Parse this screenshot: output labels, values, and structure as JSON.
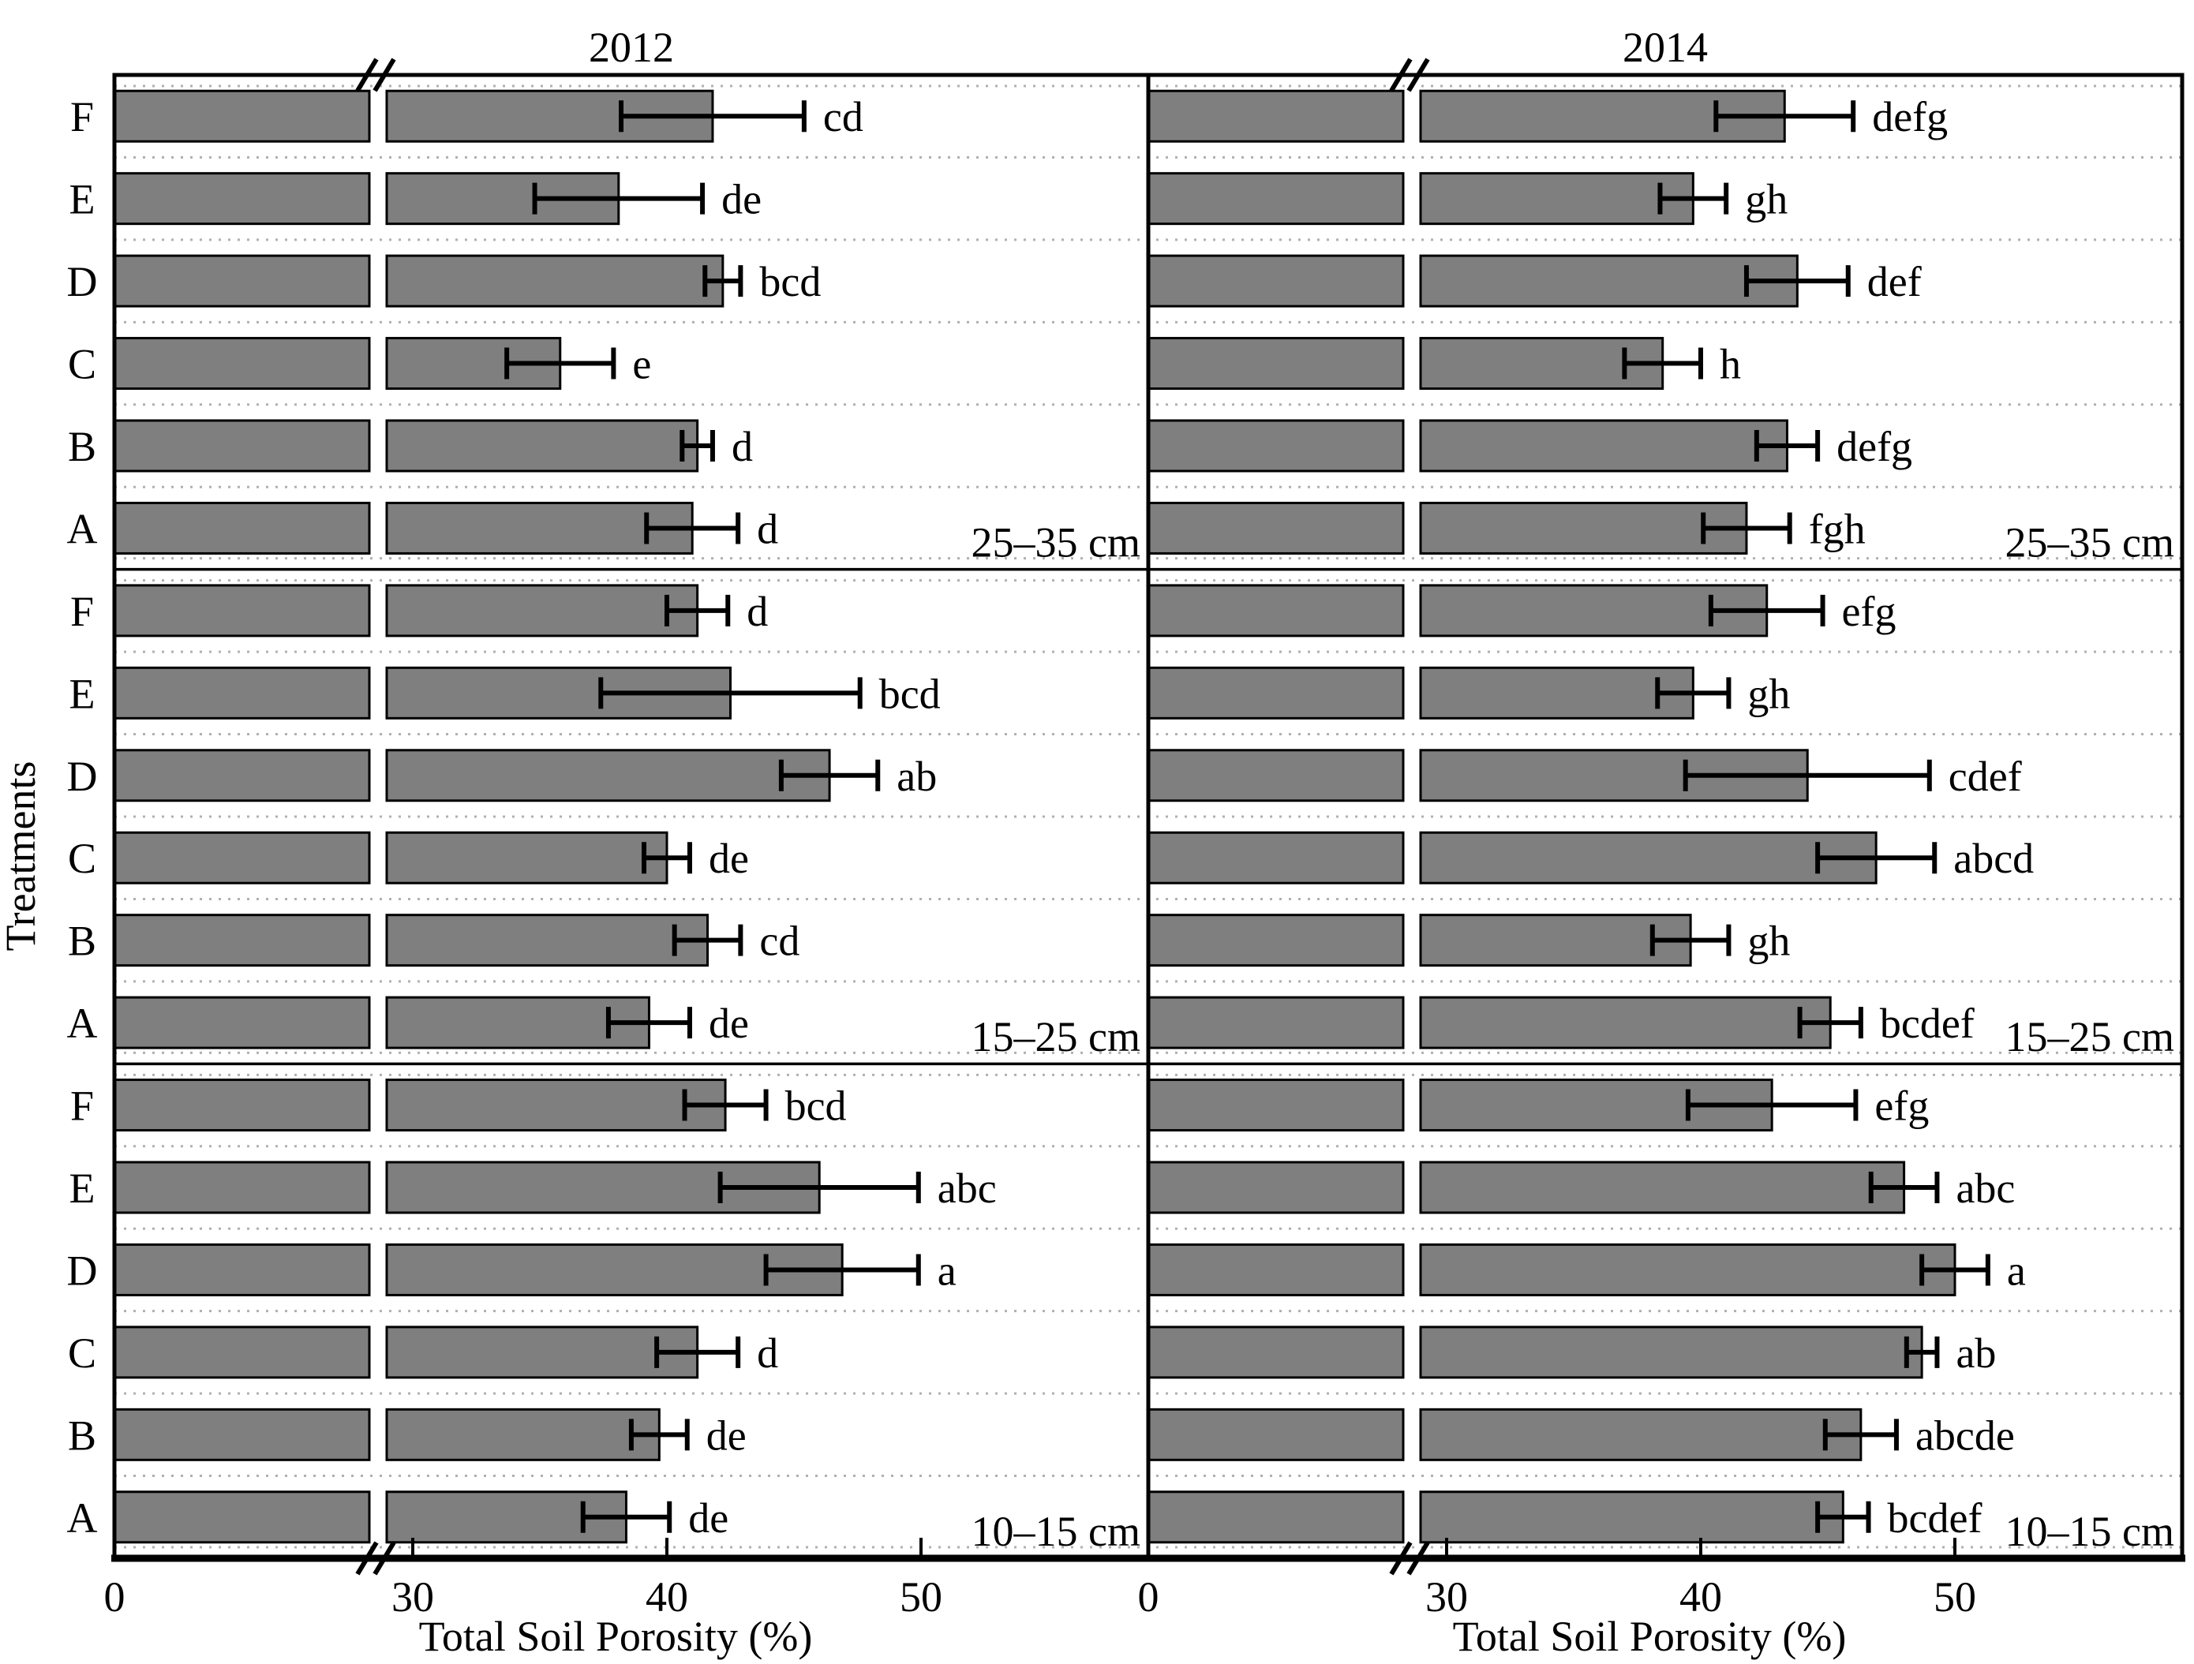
{
  "chart_data": {
    "type": "bar",
    "orientation": "horizontal",
    "bar_color": "#7f7f7f",
    "bar_edge_color": "#000000",
    "grid_color": "#b0b0b0",
    "ylabel": "Treatments",
    "treatments_top_to_bottom": [
      "F",
      "E",
      "D",
      "C",
      "B",
      "A"
    ],
    "depth_sections_top_to_bottom": [
      "25–35 cm",
      "15–25 cm",
      "10–15 cm"
    ],
    "x_axis": {
      "label": "Total Soil Porosity (%)",
      "ticks": [
        0,
        30,
        40,
        50
      ],
      "break_between": [
        0,
        30
      ],
      "max": 59
    },
    "panels": [
      {
        "title": "2012",
        "sections": [
          {
            "depth": "25–35 cm",
            "bars": [
              {
                "treatment": "F",
                "value": 41.8,
                "error": 3.6,
                "letter": "cd"
              },
              {
                "treatment": "E",
                "value": 38.1,
                "error": 3.3,
                "letter": "de"
              },
              {
                "treatment": "D",
                "value": 42.2,
                "error": 0.7,
                "letter": "bcd"
              },
              {
                "treatment": "C",
                "value": 35.8,
                "error": 2.1,
                "letter": "e"
              },
              {
                "treatment": "B",
                "value": 41.2,
                "error": 0.6,
                "letter": "d"
              },
              {
                "treatment": "A",
                "value": 41.0,
                "error": 1.8,
                "letter": "d"
              }
            ]
          },
          {
            "depth": "15–25 cm",
            "bars": [
              {
                "treatment": "F",
                "value": 41.2,
                "error": 1.2,
                "letter": "d"
              },
              {
                "treatment": "E",
                "value": 42.5,
                "error": 5.1,
                "letter": "bcd"
              },
              {
                "treatment": "D",
                "value": 46.4,
                "error": 1.9,
                "letter": "ab"
              },
              {
                "treatment": "C",
                "value": 40.0,
                "error": 0.9,
                "letter": "de"
              },
              {
                "treatment": "B",
                "value": 41.6,
                "error": 1.3,
                "letter": "cd"
              },
              {
                "treatment": "A",
                "value": 39.3,
                "error": 1.6,
                "letter": "de"
              }
            ]
          },
          {
            "depth": "10–15 cm",
            "bars": [
              {
                "treatment": "F",
                "value": 42.3,
                "error": 1.6,
                "letter": "bcd"
              },
              {
                "treatment": "E",
                "value": 46.0,
                "error": 3.9,
                "letter": "abc"
              },
              {
                "treatment": "D",
                "value": 46.9,
                "error": 3.0,
                "letter": "a"
              },
              {
                "treatment": "C",
                "value": 41.2,
                "error": 1.6,
                "letter": "d"
              },
              {
                "treatment": "B",
                "value": 39.7,
                "error": 1.1,
                "letter": "de"
              },
              {
                "treatment": "A",
                "value": 38.4,
                "error": 1.7,
                "letter": "de"
              }
            ]
          }
        ]
      },
      {
        "title": "2014",
        "sections": [
          {
            "depth": "25–35 cm",
            "bars": [
              {
                "treatment": "F",
                "value": 43.3,
                "error": 2.7,
                "letter": "defg"
              },
              {
                "treatment": "E",
                "value": 39.7,
                "error": 1.3,
                "letter": "gh"
              },
              {
                "treatment": "D",
                "value": 43.8,
                "error": 2.0,
                "letter": "def"
              },
              {
                "treatment": "C",
                "value": 38.5,
                "error": 1.5,
                "letter": "h"
              },
              {
                "treatment": "B",
                "value": 43.4,
                "error": 1.2,
                "letter": "defg"
              },
              {
                "treatment": "A",
                "value": 41.8,
                "error": 1.7,
                "letter": "fgh"
              }
            ]
          },
          {
            "depth": "15–25 cm",
            "bars": [
              {
                "treatment": "F",
                "value": 42.6,
                "error": 2.2,
                "letter": "efg"
              },
              {
                "treatment": "E",
                "value": 39.7,
                "error": 1.4,
                "letter": "gh"
              },
              {
                "treatment": "D",
                "value": 44.2,
                "error": 4.8,
                "letter": "cdef"
              },
              {
                "treatment": "C",
                "value": 46.9,
                "error": 2.3,
                "letter": "abcd"
              },
              {
                "treatment": "B",
                "value": 39.6,
                "error": 1.5,
                "letter": "gh"
              },
              {
                "treatment": "A",
                "value": 45.1,
                "error": 1.2,
                "letter": "bcdef"
              }
            ]
          },
          {
            "depth": "10–15 cm",
            "bars": [
              {
                "treatment": "F",
                "value": 42.8,
                "error": 3.3,
                "letter": "efg"
              },
              {
                "treatment": "E",
                "value": 48.0,
                "error": 1.3,
                "letter": "abc"
              },
              {
                "treatment": "D",
                "value": 50.0,
                "error": 1.3,
                "letter": "a"
              },
              {
                "treatment": "C",
                "value": 48.7,
                "error": 0.6,
                "letter": "ab"
              },
              {
                "treatment": "B",
                "value": 46.3,
                "error": 1.4,
                "letter": "abcde"
              },
              {
                "treatment": "A",
                "value": 45.6,
                "error": 1.0,
                "letter": "bcdef"
              }
            ]
          }
        ]
      }
    ]
  }
}
